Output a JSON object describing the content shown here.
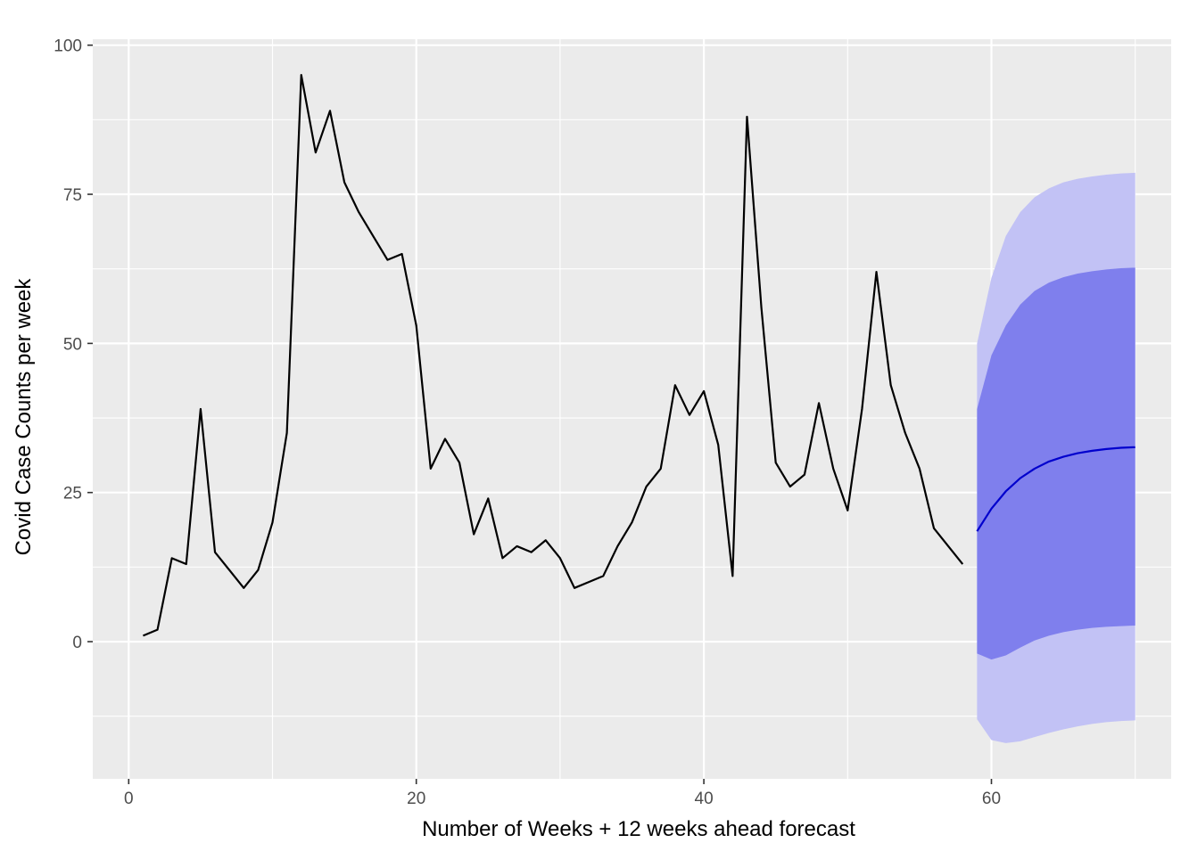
{
  "chart_data": {
    "type": "line",
    "title": "",
    "xlabel": "Number of Weeks + 12 weeks ahead forecast",
    "ylabel": "Covid Case Counts per week",
    "xlim": [
      -2.5,
      72.5
    ],
    "ylim": [
      -23,
      101
    ],
    "x_ticks": [
      0,
      20,
      40,
      60
    ],
    "y_ticks": [
      0,
      25,
      50,
      75,
      100
    ],
    "grid": true,
    "legend": "none",
    "colors": {
      "panel": "#ebebeb",
      "grid": "#ffffff",
      "observed": "#000000",
      "forecast": "#0000cd",
      "band80": "#7f7fed",
      "band95": "#c2c2f5"
    },
    "series": [
      {
        "role": "observed",
        "x": [
          1,
          2,
          3,
          4,
          5,
          6,
          7,
          8,
          9,
          10,
          11,
          12,
          13,
          14,
          15,
          16,
          17,
          18,
          19,
          20,
          21,
          22,
          23,
          24,
          25,
          26,
          27,
          28,
          29,
          30,
          31,
          32,
          33,
          34,
          35,
          36,
          37,
          38,
          39,
          40,
          41,
          42,
          43,
          44,
          45,
          46,
          47,
          48,
          49,
          50,
          51,
          52,
          53,
          54,
          55,
          56,
          57,
          58
        ],
        "y": [
          1,
          2,
          14,
          13,
          39,
          15,
          12,
          9,
          12,
          20,
          35,
          95,
          82,
          89,
          77,
          72,
          68,
          64,
          65,
          53,
          29,
          34,
          30,
          18,
          24,
          14,
          16,
          15,
          17,
          14,
          9,
          10,
          11,
          16,
          20,
          26,
          29,
          43,
          38,
          42,
          33,
          11,
          88,
          56,
          30,
          26,
          28,
          40,
          29,
          22,
          39,
          62,
          43,
          35,
          29,
          19,
          16,
          13
        ]
      },
      {
        "role": "forecast",
        "x": [
          59,
          60,
          61,
          62,
          63,
          64,
          65,
          66,
          67,
          68,
          69,
          70
        ],
        "y": [
          18.5,
          22.3,
          25.2,
          27.4,
          29.0,
          30.2,
          31.0,
          31.6,
          32.0,
          32.3,
          32.5,
          32.6
        ]
      }
    ],
    "bands": [
      {
        "level": "95",
        "x": [
          59,
          60,
          61,
          62,
          63,
          64,
          65,
          66,
          67,
          68,
          69,
          70
        ],
        "lower": [
          -13.0,
          -16.5,
          -17.0,
          -16.7,
          -16.0,
          -15.3,
          -14.7,
          -14.2,
          -13.8,
          -13.5,
          -13.3,
          -13.2
        ],
        "upper": [
          50.0,
          61.0,
          68.0,
          72.0,
          74.5,
          76.0,
          77.0,
          77.6,
          78.0,
          78.3,
          78.5,
          78.6
        ]
      },
      {
        "level": "80",
        "x": [
          59,
          60,
          61,
          62,
          63,
          64,
          65,
          66,
          67,
          68,
          69,
          70
        ],
        "lower": [
          -2.0,
          -3.0,
          -2.3,
          -1.0,
          0.2,
          1.0,
          1.6,
          2.0,
          2.3,
          2.5,
          2.6,
          2.7
        ],
        "upper": [
          39.0,
          48.0,
          53.0,
          56.5,
          58.8,
          60.2,
          61.1,
          61.7,
          62.1,
          62.4,
          62.6,
          62.7
        ]
      }
    ]
  }
}
